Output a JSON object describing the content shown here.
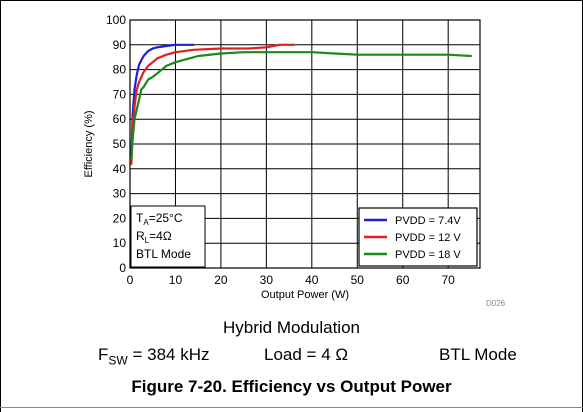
{
  "chart_data": {
    "type": "line",
    "title": "",
    "xlabel": "Output Power (W)",
    "ylabel": "Efficiency (%)",
    "xlim": [
      0,
      77
    ],
    "ylim": [
      0,
      100
    ],
    "x_ticks": [
      "0",
      "10",
      "20",
      "30",
      "40",
      "50",
      "60",
      "70"
    ],
    "y_ticks": [
      "0",
      "10",
      "20",
      "30",
      "40",
      "50",
      "60",
      "70",
      "80",
      "90",
      "100"
    ],
    "grid": true,
    "legend_position": "bottom-right",
    "watermark": "D026",
    "annotation": {
      "ta": "T",
      "ta_sub": "A",
      "ta_val": "=25°C",
      "rl": "R",
      "rl_sub": "L",
      "rl_val": "=4Ω",
      "mode": "BTL Mode"
    },
    "series": [
      {
        "name": "PVDD = 7.4V",
        "color": "#1f1fd6",
        "x": [
          0.3,
          0.6,
          1,
          1.5,
          2,
          3,
          4,
          5,
          6,
          8,
          10,
          12,
          14
        ],
        "y": [
          45,
          62,
          72,
          78,
          82,
          85.5,
          87.5,
          88.5,
          89,
          89.5,
          90,
          90,
          90
        ]
      },
      {
        "name": "PVDD = 12 V",
        "color": "#e02020",
        "x": [
          0.3,
          0.6,
          1,
          1.5,
          2,
          3,
          4,
          5,
          6,
          8,
          10,
          14,
          20,
          26,
          30,
          33,
          36
        ],
        "y": [
          42,
          57,
          65,
          72,
          75,
          79,
          81.5,
          83,
          84.5,
          86,
          87,
          88,
          88.5,
          88.5,
          89,
          90,
          90
        ]
      },
      {
        "name": "PVDD = 18 V",
        "color": "#1a8a1a",
        "x": [
          0.3,
          0.6,
          1,
          1.5,
          2,
          2.5,
          3,
          4,
          5,
          6,
          8,
          10,
          12,
          15,
          20,
          25,
          30,
          40,
          45,
          50,
          60,
          70,
          75
        ],
        "y": [
          44,
          52,
          60,
          64,
          68,
          72,
          73,
          76,
          77,
          78.5,
          81.5,
          83,
          84,
          85.5,
          86.5,
          87,
          87,
          87,
          86.5,
          86,
          86,
          86,
          85.5
        ]
      }
    ]
  },
  "conditions": {
    "modulation": "Hybrid Modulation",
    "fsw_label": "F",
    "fsw_sub": "SW",
    "fsw_value": " = 384 kHz",
    "load": "Load = 4 Ω",
    "mode": "BTL Mode"
  },
  "figure_title": "Figure 7-20. Efficiency vs Output Power"
}
